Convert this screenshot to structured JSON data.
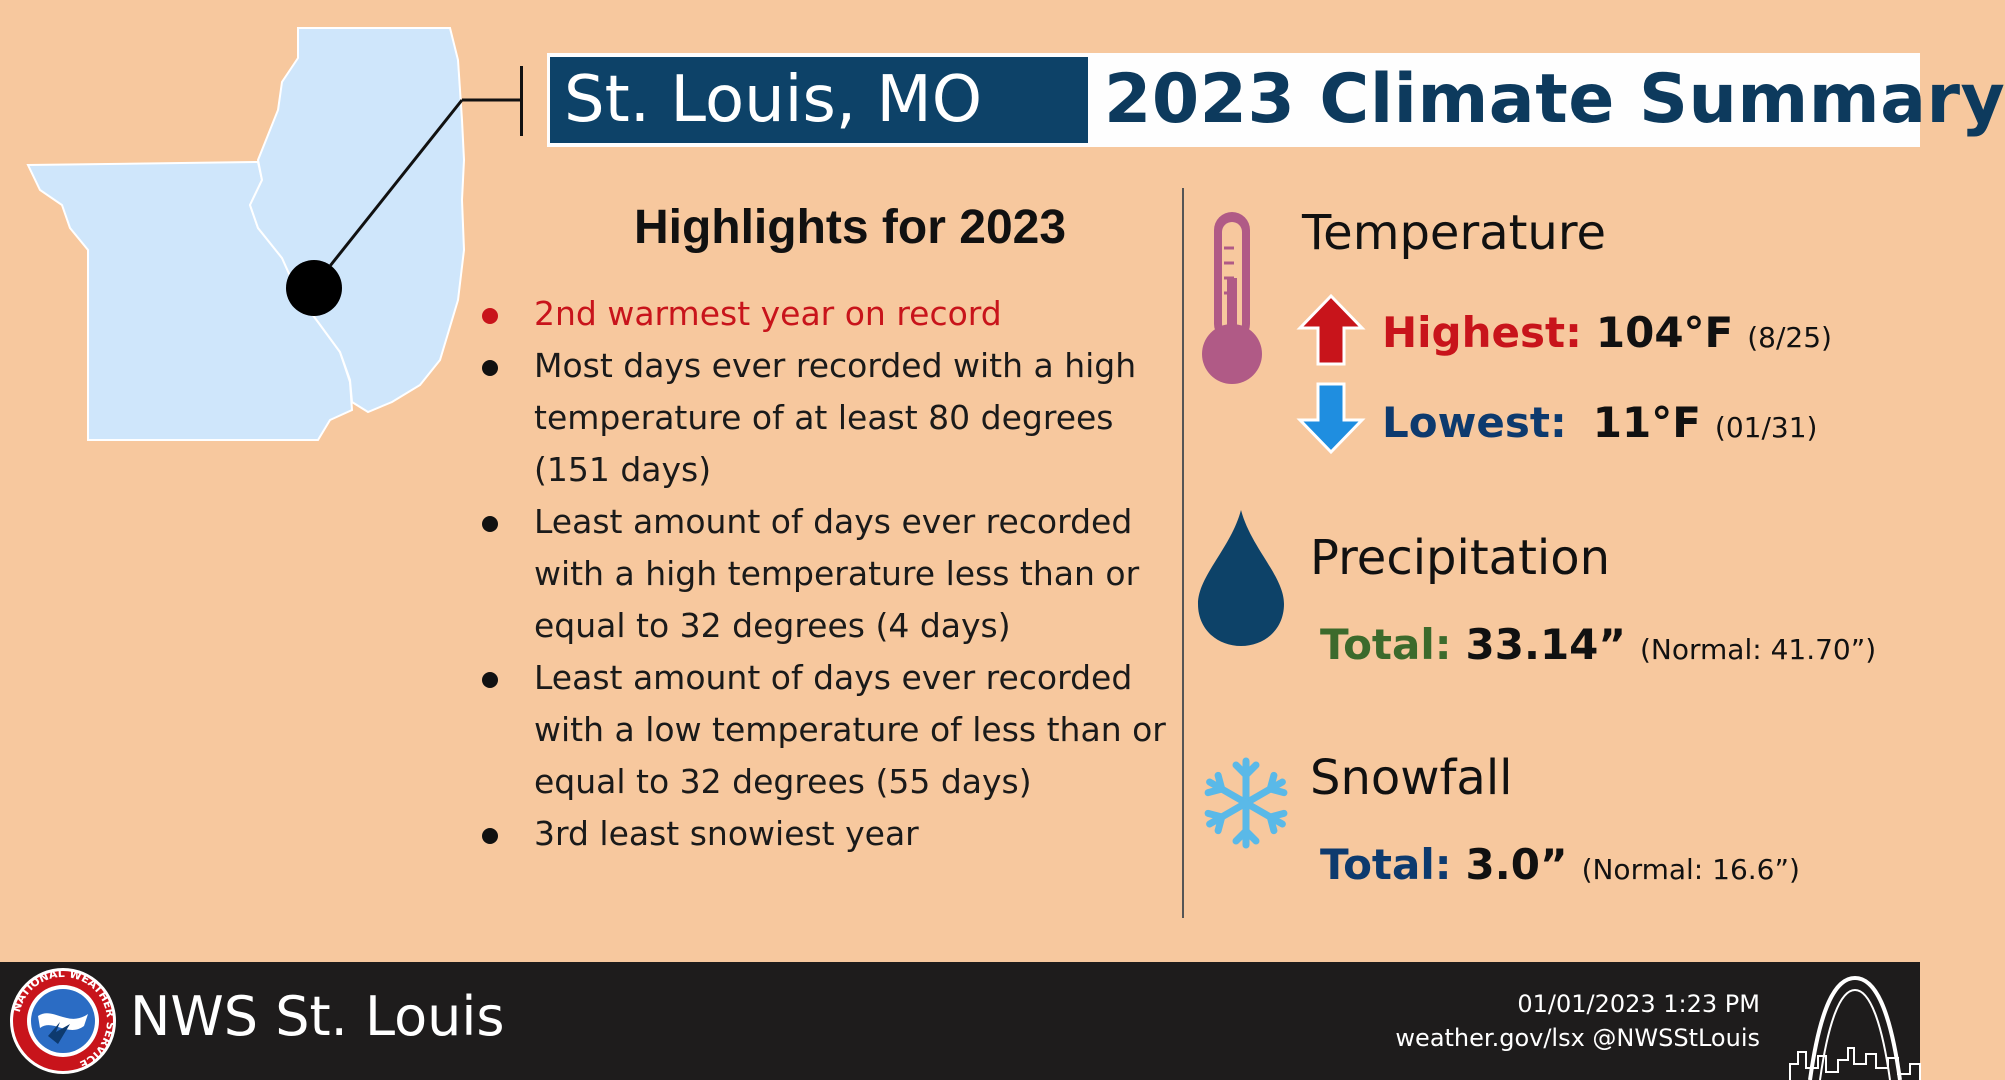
{
  "header": {
    "location": "St. Louis, MO",
    "title": "2023 Climate Summary"
  },
  "highlights": {
    "title": "Highlights for 2023",
    "items": [
      "2nd warmest year on record",
      "Most days ever recorded with a high temperature of at least 80 degrees (151 days)",
      "Least amount of days ever recorded with a high temperature less than or equal to 32 degrees (4 days)",
      "Least amount of days ever recorded with a low temperature of less than or equal to 32 degrees (55 days)",
      "3rd least snowiest year"
    ]
  },
  "temperature": {
    "title": "Temperature",
    "highest_label": "Highest:",
    "highest_value": "104°F",
    "highest_date": "(8/25)",
    "lowest_label": "Lowest:",
    "lowest_value": "11°F",
    "lowest_date": "(01/31)"
  },
  "precipitation": {
    "title": "Precipitation",
    "total_label": "Total:",
    "total_value": "33.14”",
    "normal": "(Normal: 41.70”)"
  },
  "snowfall": {
    "title": "Snowfall",
    "total_label": "Total:",
    "total_value": "3.0”",
    "normal": "(Normal: 16.6”)"
  },
  "footer": {
    "office": "NWS St. Louis",
    "timestamp": "01/01/2023 1:23 PM",
    "web": "weather.gov/lsx @NWSStLouis",
    "logo_text": "NATIONAL WEATHER SERVICE"
  },
  "colors": {
    "background": "#f7c89e",
    "navy": "#0d4268",
    "red": "#c8141b",
    "green": "#3c6a2c",
    "map_fill": "#cfe6fb",
    "footer": "#1e1c1c"
  },
  "icons": [
    "thermometer-icon",
    "up-arrow-icon",
    "down-arrow-icon",
    "water-drop-icon",
    "snowflake-icon",
    "nws-logo-icon",
    "gateway-arch-icon"
  ]
}
